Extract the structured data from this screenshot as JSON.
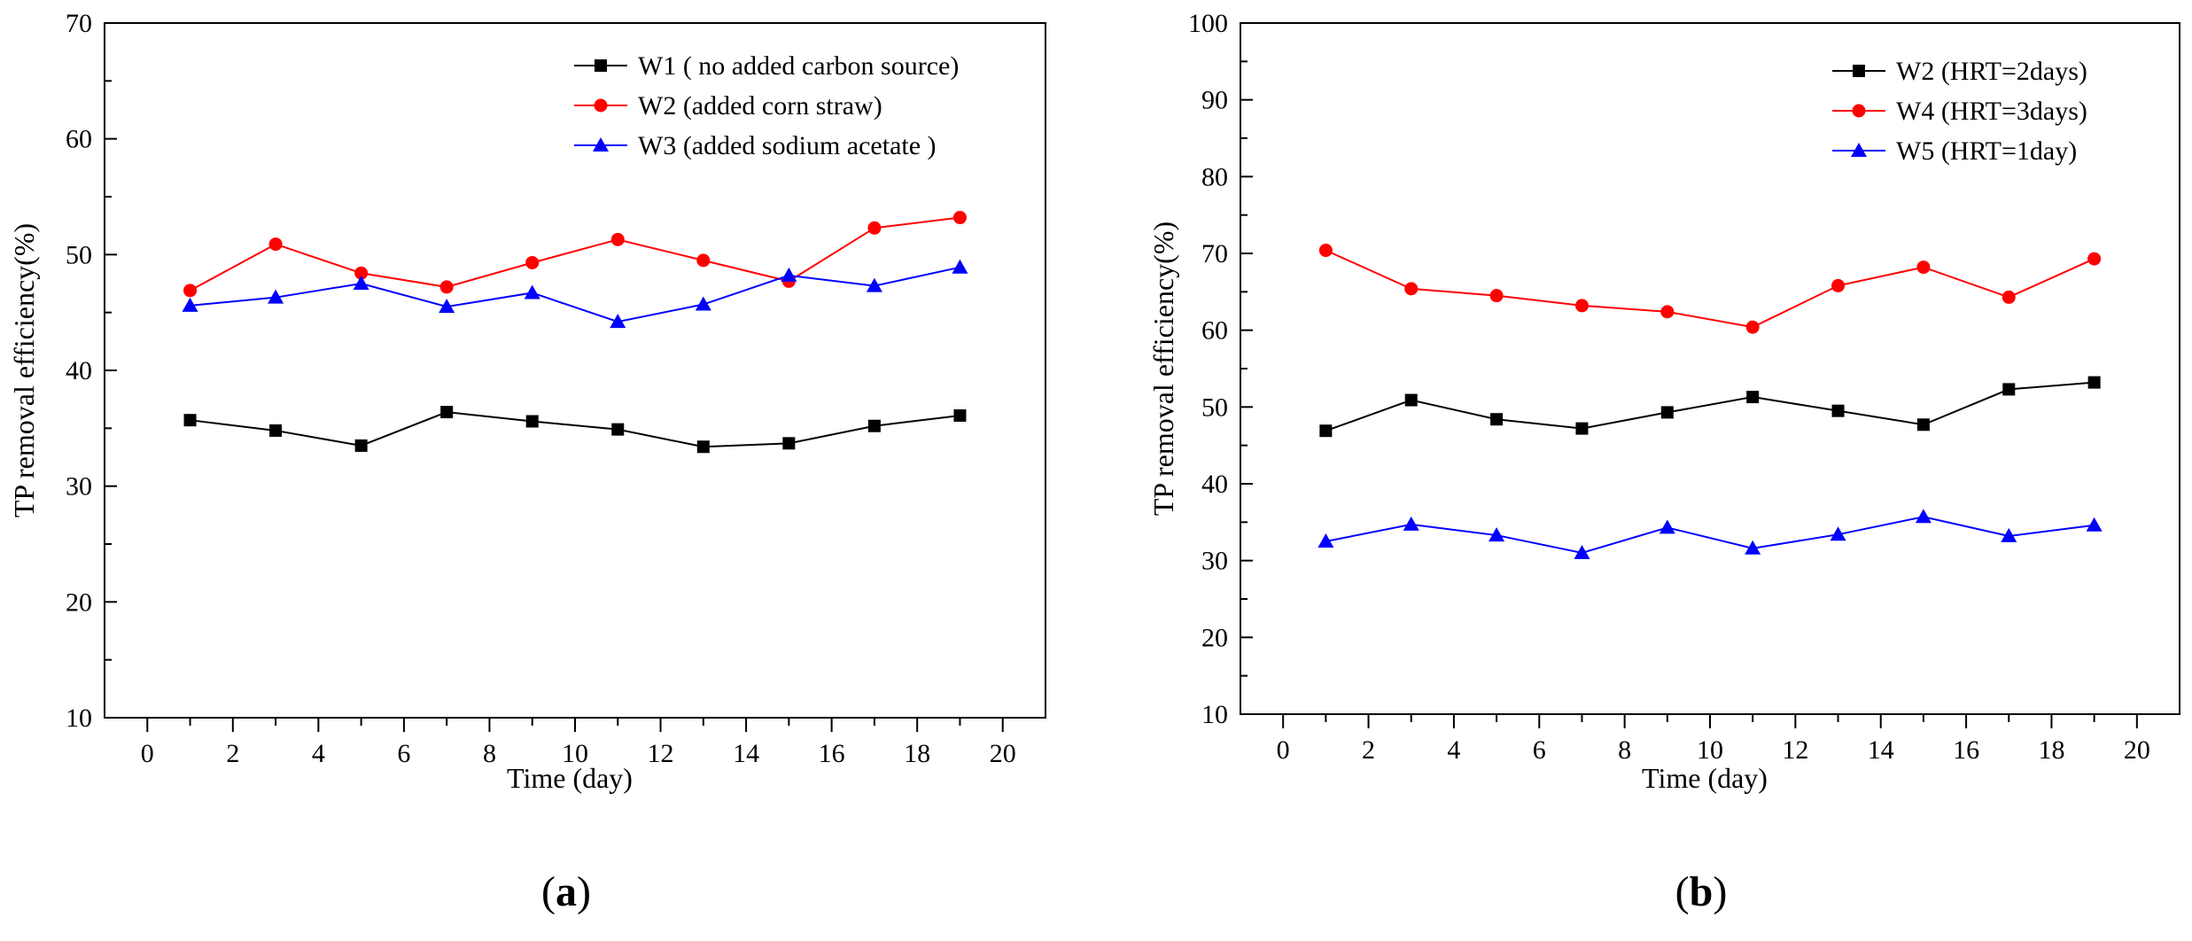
{
  "chart_data": [
    {
      "type": "line",
      "panel_label": "a",
      "xlabel": "Time (day)",
      "ylabel": "TP removal efficiency(%)",
      "xlim": [
        -1,
        21
      ],
      "ylim": [
        10,
        70
      ],
      "xticks": [
        0,
        2,
        4,
        6,
        8,
        10,
        12,
        14,
        16,
        18,
        20
      ],
      "yticks": [
        10,
        20,
        30,
        40,
        50,
        60,
        70
      ],
      "legend_position": "top-right",
      "x": [
        1,
        3,
        5,
        7,
        9,
        11,
        13,
        15,
        17,
        19
      ],
      "series": [
        {
          "name": "W1 ( no added carbon source)",
          "color": "#000000",
          "marker": "square",
          "values": [
            35.7,
            34.8,
            33.5,
            36.4,
            35.6,
            34.9,
            33.4,
            33.7,
            35.2,
            36.1
          ]
        },
        {
          "name": "W2 (added corn straw)",
          "color": "#ff0000",
          "marker": "circle",
          "values": [
            46.9,
            50.9,
            48.4,
            47.2,
            49.3,
            51.3,
            49.5,
            47.7,
            52.3,
            53.2
          ]
        },
        {
          "name": "W3 (added sodium acetate )",
          "color": "#0000ff",
          "marker": "triangle",
          "values": [
            45.6,
            46.3,
            47.5,
            45.5,
            46.7,
            44.2,
            45.7,
            48.2,
            47.3,
            48.9
          ]
        }
      ]
    },
    {
      "type": "line",
      "panel_label": "b",
      "xlabel": "Time (day)",
      "ylabel": "TP removal efficiency(%)",
      "xlim": [
        -1,
        21
      ],
      "ylim": [
        10,
        100
      ],
      "xticks": [
        0,
        2,
        4,
        6,
        8,
        10,
        12,
        14,
        16,
        18,
        20
      ],
      "yticks": [
        10,
        20,
        30,
        40,
        50,
        60,
        70,
        80,
        90,
        100
      ],
      "legend_position": "top-right",
      "x": [
        1,
        3,
        5,
        7,
        9,
        11,
        13,
        15,
        17,
        19
      ],
      "series": [
        {
          "name": "W2   (HRT=2days)",
          "color": "#000000",
          "marker": "square",
          "values": [
            46.9,
            50.9,
            48.4,
            47.2,
            49.3,
            51.3,
            49.5,
            47.7,
            52.3,
            53.2
          ]
        },
        {
          "name": "W4   (HRT=3days)",
          "color": "#ff0000",
          "marker": "circle",
          "values": [
            70.4,
            65.4,
            64.5,
            63.2,
            62.4,
            60.4,
            65.8,
            68.2,
            64.3,
            69.3
          ]
        },
        {
          "name": "W5   (HRT=1day)",
          "color": "#0000ff",
          "marker": "triangle",
          "values": [
            32.5,
            34.7,
            33.3,
            31.0,
            34.3,
            31.6,
            33.4,
            35.7,
            33.2,
            34.6
          ]
        }
      ]
    }
  ]
}
